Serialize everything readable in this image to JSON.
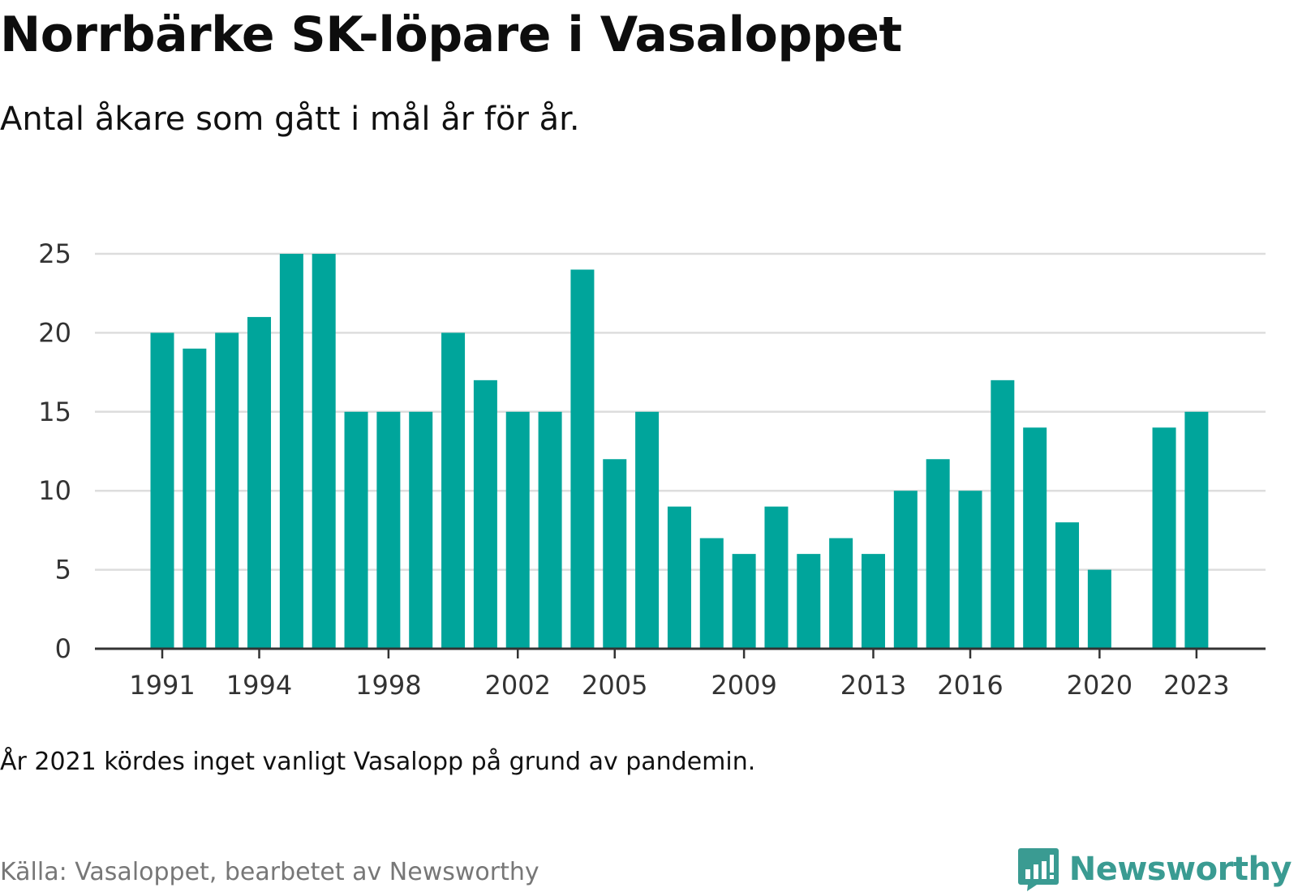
{
  "title": "Norrbärke SK-löpare i Vasaloppet",
  "subtitle": "Antal åkare som gått i mål år för år.",
  "note": "År 2021 kördes inget vanligt Vasalopp på grund av pandemin.",
  "source": "Källa: Vasaloppet, bearbetet av Newsworthy",
  "brand": {
    "name": "Newsworthy",
    "icon": "newsworthy-logo-icon"
  },
  "colors": {
    "bar": "#00a59b",
    "grid": "#dddddd",
    "axis": "#333333",
    "brand": "#3a9b92"
  },
  "chart_data": {
    "type": "bar",
    "categories": [
      1991,
      1992,
      1993,
      1994,
      1995,
      1996,
      1997,
      1998,
      1999,
      2000,
      2001,
      2002,
      2003,
      2004,
      2005,
      2006,
      2007,
      2008,
      2009,
      2010,
      2011,
      2012,
      2013,
      2014,
      2015,
      2016,
      2017,
      2018,
      2019,
      2020,
      2021,
      2022,
      2023
    ],
    "values": [
      20,
      19,
      20,
      21,
      25,
      25,
      15,
      15,
      15,
      20,
      17,
      15,
      15,
      24,
      12,
      15,
      9,
      7,
      6,
      9,
      6,
      7,
      6,
      10,
      12,
      10,
      17,
      14,
      8,
      5,
      null,
      14,
      15
    ],
    "xticks": [
      1991,
      1994,
      1998,
      2002,
      2005,
      2009,
      2013,
      2016,
      2020,
      2023
    ],
    "yticks": [
      0,
      5,
      10,
      15,
      20,
      25
    ],
    "ylim": [
      0,
      25
    ],
    "xlabel": "",
    "ylabel": "",
    "grid": true,
    "legend": "none"
  }
}
